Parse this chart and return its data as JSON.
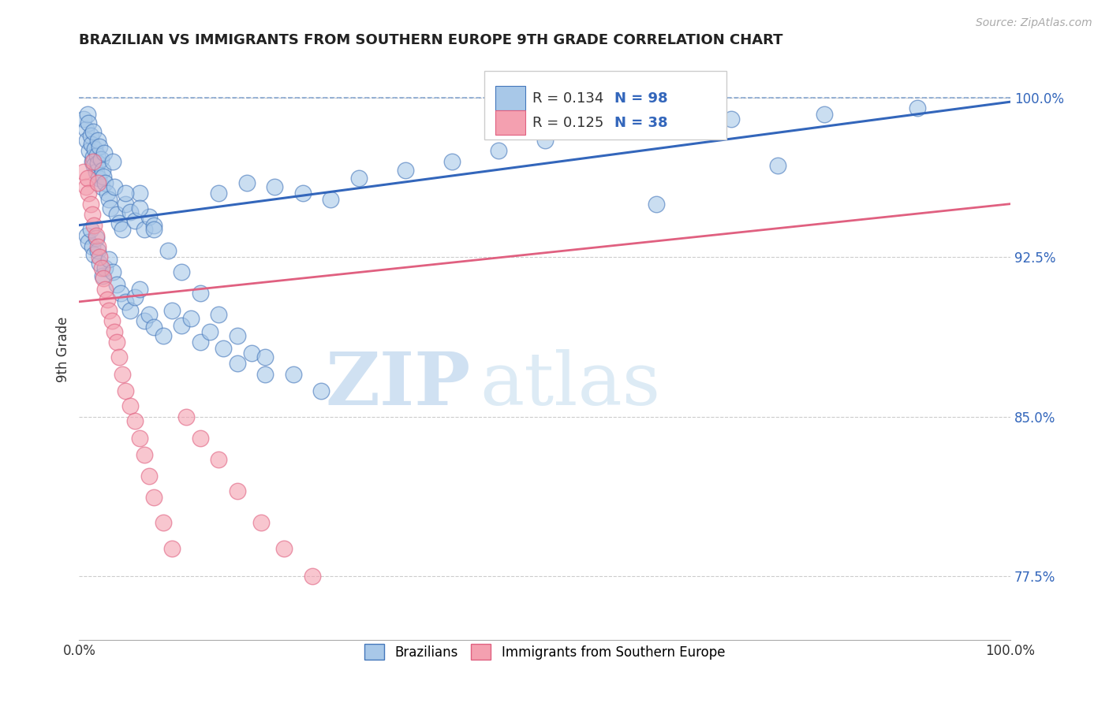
{
  "title": "BRAZILIAN VS IMMIGRANTS FROM SOUTHERN EUROPE 9TH GRADE CORRELATION CHART",
  "source_text": "Source: ZipAtlas.com",
  "ylabel": "9th Grade",
  "xlim": [
    0,
    1.0
  ],
  "ylim": [
    0.745,
    1.018
  ],
  "right_yticks": [
    0.775,
    0.85,
    0.925,
    1.0
  ],
  "right_yticklabels": [
    "77.5%",
    "85.0%",
    "92.5%",
    "100.0%"
  ],
  "xticks": [
    0.0,
    1.0
  ],
  "xticklabels": [
    "0.0%",
    "100.0%"
  ],
  "blue_R": 0.134,
  "blue_N": 98,
  "pink_R": 0.125,
  "pink_N": 38,
  "blue_color": "#A8C8E8",
  "pink_color": "#F4A0B0",
  "blue_edge_color": "#4477BB",
  "pink_edge_color": "#E06080",
  "blue_line_color": "#3366BB",
  "pink_line_color": "#E06080",
  "blue_line_start_y": 0.94,
  "blue_line_end_y": 0.998,
  "pink_line_start_y": 0.904,
  "pink_line_end_y": 0.95,
  "legend_label_blue": "Brazilians",
  "legend_label_pink": "Immigrants from Southern Europe",
  "watermark_zip": "ZIP",
  "watermark_atlas": "atlas",
  "blue_scatter_x": [
    0.005,
    0.007,
    0.008,
    0.009,
    0.01,
    0.011,
    0.012,
    0.013,
    0.014,
    0.015,
    0.015,
    0.016,
    0.017,
    0.018,
    0.019,
    0.02,
    0.02,
    0.021,
    0.022,
    0.023,
    0.024,
    0.025,
    0.026,
    0.027,
    0.028,
    0.03,
    0.032,
    0.034,
    0.036,
    0.038,
    0.04,
    0.043,
    0.046,
    0.05,
    0.055,
    0.06,
    0.065,
    0.07,
    0.075,
    0.08,
    0.008,
    0.01,
    0.012,
    0.014,
    0.016,
    0.018,
    0.02,
    0.022,
    0.025,
    0.028,
    0.032,
    0.036,
    0.04,
    0.045,
    0.05,
    0.055,
    0.06,
    0.065,
    0.07,
    0.075,
    0.08,
    0.09,
    0.1,
    0.11,
    0.12,
    0.13,
    0.14,
    0.155,
    0.17,
    0.185,
    0.2,
    0.05,
    0.065,
    0.08,
    0.095,
    0.11,
    0.13,
    0.15,
    0.17,
    0.2,
    0.23,
    0.26,
    0.15,
    0.18,
    0.21,
    0.24,
    0.27,
    0.3,
    0.35,
    0.4,
    0.45,
    0.5,
    0.6,
    0.7,
    0.8,
    0.9,
    0.62,
    0.75
  ],
  "blue_scatter_y": [
    0.99,
    0.985,
    0.98,
    0.992,
    0.988,
    0.975,
    0.982,
    0.978,
    0.97,
    0.984,
    0.972,
    0.968,
    0.976,
    0.965,
    0.973,
    0.969,
    0.98,
    0.962,
    0.977,
    0.971,
    0.958,
    0.966,
    0.963,
    0.974,
    0.96,
    0.955,
    0.952,
    0.948,
    0.97,
    0.958,
    0.945,
    0.941,
    0.938,
    0.95,
    0.946,
    0.942,
    0.955,
    0.938,
    0.944,
    0.94,
    0.935,
    0.932,
    0.938,
    0.93,
    0.926,
    0.934,
    0.928,
    0.922,
    0.916,
    0.92,
    0.924,
    0.918,
    0.912,
    0.908,
    0.904,
    0.9,
    0.906,
    0.91,
    0.895,
    0.898,
    0.892,
    0.888,
    0.9,
    0.893,
    0.896,
    0.885,
    0.89,
    0.882,
    0.875,
    0.88,
    0.87,
    0.955,
    0.948,
    0.938,
    0.928,
    0.918,
    0.908,
    0.898,
    0.888,
    0.878,
    0.87,
    0.862,
    0.955,
    0.96,
    0.958,
    0.955,
    0.952,
    0.962,
    0.966,
    0.97,
    0.975,
    0.98,
    0.985,
    0.99,
    0.992,
    0.995,
    0.95,
    0.968
  ],
  "pink_scatter_x": [
    0.005,
    0.007,
    0.009,
    0.01,
    0.012,
    0.014,
    0.015,
    0.016,
    0.018,
    0.02,
    0.02,
    0.022,
    0.024,
    0.026,
    0.028,
    0.03,
    0.032,
    0.035,
    0.038,
    0.04,
    0.043,
    0.046,
    0.05,
    0.055,
    0.06,
    0.065,
    0.07,
    0.075,
    0.08,
    0.09,
    0.1,
    0.115,
    0.13,
    0.15,
    0.17,
    0.195,
    0.22,
    0.25
  ],
  "pink_scatter_y": [
    0.965,
    0.958,
    0.962,
    0.955,
    0.95,
    0.945,
    0.97,
    0.94,
    0.935,
    0.96,
    0.93,
    0.925,
    0.92,
    0.915,
    0.91,
    0.905,
    0.9,
    0.895,
    0.89,
    0.885,
    0.878,
    0.87,
    0.862,
    0.855,
    0.848,
    0.84,
    0.832,
    0.822,
    0.812,
    0.8,
    0.788,
    0.85,
    0.84,
    0.83,
    0.815,
    0.8,
    0.788,
    0.775
  ]
}
